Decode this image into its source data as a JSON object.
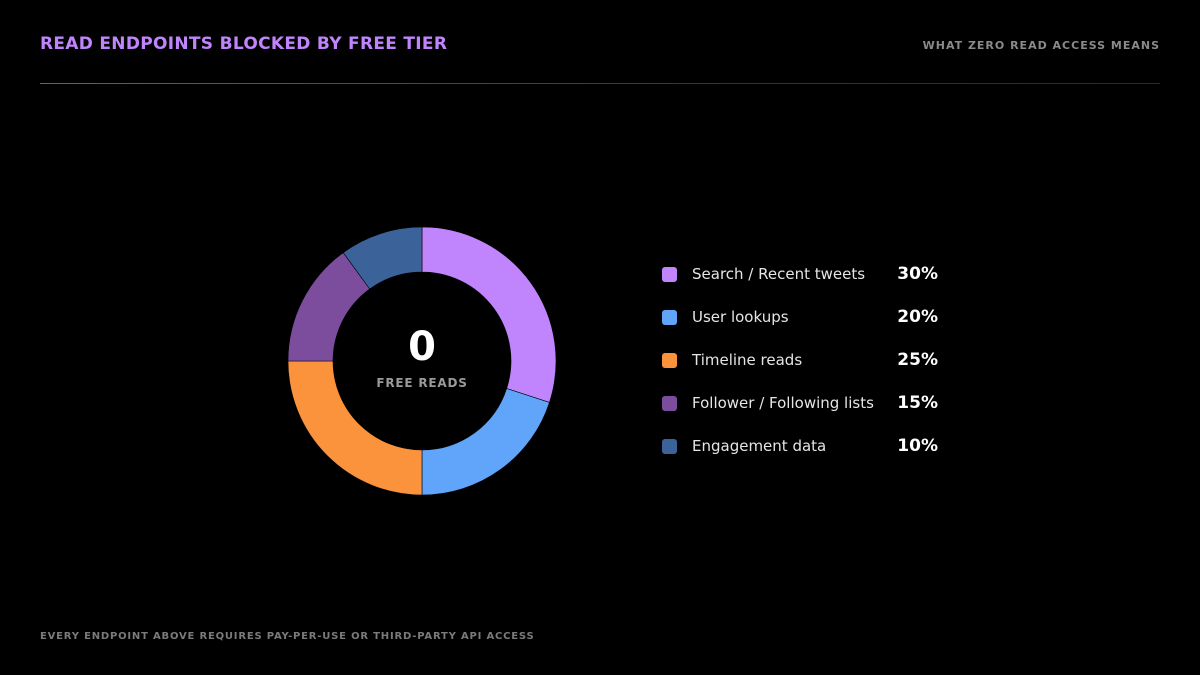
{
  "header": {
    "title": "READ ENDPOINTS BLOCKED BY FREE TIER",
    "subtitle": "WHAT ZERO READ ACCESS MEANS"
  },
  "center": {
    "value": "0",
    "label": "FREE READS"
  },
  "footer": {
    "note": "EVERY ENDPOINT ABOVE REQUIRES PAY-PER-USE OR THIRD-PARTY API ACCESS"
  },
  "chart_data": {
    "type": "pie",
    "title": "READ ENDPOINTS BLOCKED BY FREE TIER",
    "legend": "right",
    "categories": [
      "Search / Recent tweets",
      "User lookups",
      "Timeline reads",
      "Follower / Following lists",
      "Engagement data"
    ],
    "values": [
      30,
      20,
      25,
      15,
      10
    ],
    "value_labels": [
      "30%",
      "20%",
      "25%",
      "15%",
      "10%"
    ],
    "colors": [
      "#c084fc",
      "#60a5fa",
      "#fb923c",
      "#7b4d9c",
      "#3b6399"
    ]
  }
}
